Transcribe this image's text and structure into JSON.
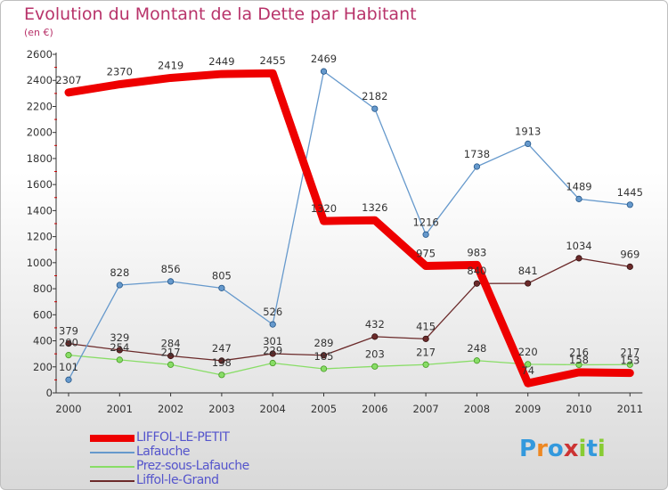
{
  "title": "Evolution du Montant de la Dette par Habitant",
  "subtitle": "(en €)",
  "logo_text": "Proxiti",
  "chart_data": {
    "type": "line",
    "title": "Evolution du Montant de la Dette par Habitant",
    "subtitle": "(en €)",
    "x": [
      2000,
      2001,
      2002,
      2003,
      2004,
      2005,
      2006,
      2007,
      2008,
      2009,
      2010,
      2011
    ],
    "y_ticks": [
      0,
      200,
      400,
      600,
      800,
      1000,
      1200,
      1400,
      1600,
      1800,
      2000,
      2200,
      2400,
      2600
    ],
    "ylim": [
      0,
      2600
    ],
    "grid": false,
    "legend_position": "bottom-left",
    "series": [
      {
        "name": "LIFFOL-LE-PETIT",
        "color": "#ee0000",
        "values": [
          2307,
          2370,
          2419,
          2449,
          2455,
          1320,
          1326,
          975,
          983,
          74,
          158,
          153
        ],
        "labels": [
          "2307",
          "2370",
          "2419",
          "2449",
          "2455",
          "1320",
          "1326",
          "975",
          "983",
          "74",
          "158",
          "153"
        ]
      },
      {
        "name": "Lafauche",
        "color": "#6699cc",
        "values": [
          101,
          828,
          856,
          805,
          526,
          2469,
          2182,
          1216,
          1738,
          1913,
          1489,
          1445
        ],
        "labels": [
          "101",
          "828",
          "856",
          "805",
          "526",
          "2469",
          "2182",
          "1216",
          "1738",
          "1913",
          "1489",
          "1445"
        ]
      },
      {
        "name": "Prez-sous-Lafauche",
        "color": "#88dd66",
        "values": [
          290,
          254,
          217,
          138,
          229,
          185,
          203,
          217,
          248,
          220,
          216,
          217
        ],
        "labels": [
          "290",
          "254",
          "217",
          "138",
          "229",
          "185",
          "203",
          "217",
          "248",
          "220",
          "216",
          "217"
        ]
      },
      {
        "name": "Liffol-le-Grand",
        "color": "#6b2a2a",
        "values": [
          379,
          329,
          284,
          247,
          301,
          289,
          432,
          415,
          840,
          841,
          1034,
          969
        ],
        "labels": [
          "379",
          "329",
          "284",
          "247",
          "301",
          "289",
          "432",
          "415",
          "840",
          "841",
          "1034",
          "969"
        ]
      }
    ]
  }
}
